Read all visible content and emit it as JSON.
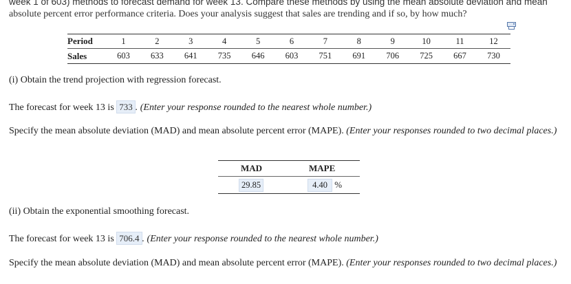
{
  "intro": {
    "line1": "week 1 of 603) methods to forecast demand for week 13. Compare these methods by using the mean absolute deviation and mean",
    "line2": "absolute percent error performance criteria. Does your analysis suggest that sales are trending and if so, by how much?"
  },
  "print_icon": "print-icon",
  "data_table": {
    "row_headers": [
      "Period",
      "Sales"
    ],
    "periods": [
      "1",
      "2",
      "3",
      "4",
      "5",
      "6",
      "7",
      "8",
      "9",
      "10",
      "11",
      "12"
    ],
    "sales": [
      "603",
      "633",
      "641",
      "735",
      "646",
      "603",
      "751",
      "691",
      "706",
      "725",
      "667",
      "730"
    ]
  },
  "part1": {
    "heading": "(i) Obtain the trend projection with regression forecast.",
    "forecast_prefix": "The forecast for week 13 is",
    "forecast_value": "733",
    "forecast_hint": ". (Enter your response rounded to the nearest whole number.)",
    "mad_prompt": "Specify the mean absolute deviation (MAD) and mean absolute percent error (MAPE).",
    "mad_hint": "(Enter your responses rounded to two decimal places.)",
    "results": {
      "mad_header": "MAD",
      "mape_header": "MAPE",
      "mad_value": "29.85",
      "mape_value": "4.40",
      "mape_unit": "%"
    }
  },
  "part2": {
    "heading": "(ii) Obtain the exponential smoothing forecast.",
    "forecast_prefix": "The forecast for week 13 is",
    "forecast_value": "706.4",
    "forecast_hint": ". (Enter your response rounded to the nearest whole number.)",
    "mad_prompt": "Specify the mean absolute deviation (MAD) and mean absolute percent error (MAPE).",
    "mad_hint": "(Enter your responses rounded to two decimal places.)"
  }
}
